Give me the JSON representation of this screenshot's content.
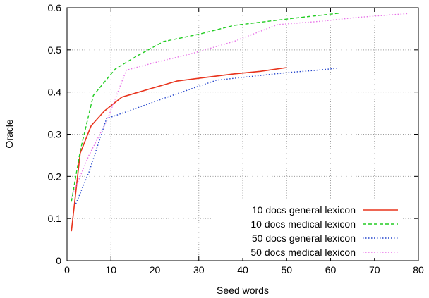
{
  "chart_data": {
    "type": "line",
    "xlabel": "Seed words",
    "ylabel": "Oracle",
    "xlim": [
      0,
      80
    ],
    "ylim": [
      0,
      0.6
    ],
    "xticks": [
      "0",
      "10",
      "20",
      "30",
      "40",
      "50",
      "60",
      "70",
      "80"
    ],
    "yticks": [
      "0",
      "0.1",
      "0.2",
      "0.3",
      "0.4",
      "0.5",
      "0.6"
    ],
    "grid": true,
    "legend_position": "bottom-right",
    "series": [
      {
        "name": "10 docs general lexicon",
        "color": "#e8331c",
        "line_style": "solid",
        "points": [
          [
            1,
            0.07
          ],
          [
            3,
            0.255
          ],
          [
            5.5,
            0.32
          ],
          [
            8.5,
            0.355
          ],
          [
            12.5,
            0.388
          ],
          [
            19,
            0.408
          ],
          [
            25,
            0.426
          ],
          [
            31,
            0.434
          ],
          [
            38,
            0.443
          ],
          [
            44,
            0.449
          ],
          [
            50,
            0.458
          ]
        ]
      },
      {
        "name": "10 docs medical lexicon",
        "color": "#22cc22",
        "line_style": "dashed",
        "points": [
          [
            1,
            0.14
          ],
          [
            3,
            0.26
          ],
          [
            6,
            0.392
          ],
          [
            11,
            0.455
          ],
          [
            16,
            0.486
          ],
          [
            22,
            0.52
          ],
          [
            30,
            0.537
          ],
          [
            38,
            0.558
          ],
          [
            46,
            0.568
          ],
          [
            54,
            0.578
          ],
          [
            62,
            0.587
          ]
        ]
      },
      {
        "name": "50 docs general lexicon",
        "color": "#2244cc",
        "line_style": "dotted",
        "points": [
          [
            2,
            0.135
          ],
          [
            5,
            0.21
          ],
          [
            9,
            0.337
          ],
          [
            14,
            0.355
          ],
          [
            22,
            0.385
          ],
          [
            34,
            0.428
          ],
          [
            42,
            0.437
          ],
          [
            50,
            0.446
          ],
          [
            56,
            0.451
          ],
          [
            62,
            0.457
          ]
        ]
      },
      {
        "name": "50 docs medical lexicon",
        "color": "#e872e8",
        "line_style": "dotted",
        "points": [
          [
            1,
            0.15
          ],
          [
            5,
            0.25
          ],
          [
            9,
            0.33
          ],
          [
            13.5,
            0.452
          ],
          [
            20,
            0.47
          ],
          [
            28,
            0.49
          ],
          [
            38,
            0.52
          ],
          [
            48,
            0.56
          ],
          [
            58,
            0.568
          ],
          [
            66,
            0.577
          ],
          [
            77.5,
            0.586
          ]
        ]
      }
    ]
  }
}
